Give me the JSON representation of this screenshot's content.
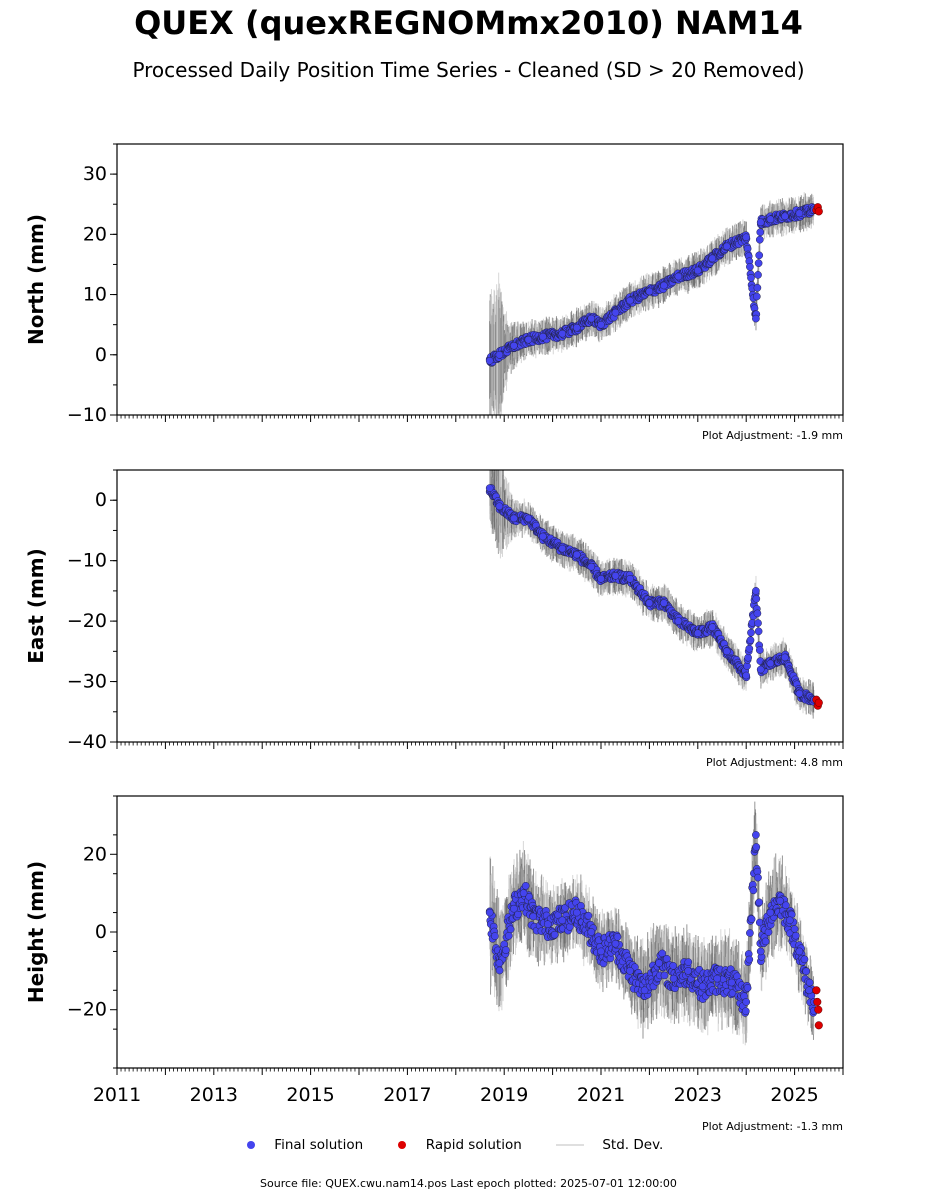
{
  "title": "QUEX (quexREGNOMmx2010) NAM14",
  "subtitle": "Processed Daily Position Time Series - Cleaned (SD > 20 Removed)",
  "colors": {
    "final": "#4444ee",
    "rapid": "#dd0000",
    "stddev": "#9a9a9a"
  },
  "legend": {
    "final": "Final solution",
    "rapid": "Rapid solution",
    "stddev": "Std. Dev."
  },
  "footer": "Source file: QUEX.cwu.nam14.pos  Last epoch plotted: 2025-07-01 12:00:00",
  "chart_data": [
    {
      "type": "scatter",
      "ylabel": "North (mm)",
      "ylim": [
        -10,
        35
      ],
      "yticks": [
        -10,
        0,
        10,
        20,
        30
      ],
      "yticklabels": [
        "−10",
        "0",
        "10",
        "20",
        "30"
      ],
      "xlim": [
        2011,
        2026
      ],
      "adjustment": "Plot Adjustment: -1.9 mm",
      "series": [
        {
          "name": "Final solution",
          "x": [
            2018.7,
            2018.9,
            2019.2,
            2019.5,
            2019.8,
            2020.2,
            2020.5,
            2020.8,
            2021.0,
            2021.3,
            2021.6,
            2022.0,
            2022.3,
            2022.6,
            2023.0,
            2023.3,
            2023.6,
            2024.0,
            2024.2,
            2024.3,
            2024.5,
            2024.8,
            2025.1,
            2025.4
          ],
          "y": [
            -1,
            0,
            1.5,
            2.5,
            3,
            3.5,
            4.5,
            6,
            5,
            7,
            9,
            10.5,
            11.5,
            13,
            14,
            16,
            18,
            19.5,
            6,
            22,
            22.5,
            23,
            23.5,
            24
          ]
        },
        {
          "name": "Rapid solution",
          "x": [
            2025.45,
            2025.48,
            2025.5
          ],
          "y": [
            24,
            24.5,
            23.8
          ]
        }
      ],
      "stddev": {
        "x": [
          2018.7,
          2018.85,
          2019.1,
          2019.5,
          2020.0,
          2020.5,
          2021.0,
          2021.5,
          2022.0,
          2022.5,
          2023.0,
          2023.5,
          2024.0,
          2024.5,
          2025.0,
          2025.4
        ],
        "halfwidth": [
          8,
          10,
          3,
          2,
          2,
          2,
          2,
          2,
          2,
          2,
          2,
          2,
          2,
          2,
          2,
          2
        ]
      }
    },
    {
      "type": "scatter",
      "ylabel": "East (mm)",
      "ylim": [
        -40,
        5
      ],
      "yticks": [
        -40,
        -30,
        -20,
        -10,
        0
      ],
      "yticklabels": [
        "−40",
        "−30",
        "−20",
        "−10",
        "0"
      ],
      "xlim": [
        2011,
        2026
      ],
      "adjustment": "Plot Adjustment: 4.8 mm",
      "series": [
        {
          "name": "Final solution",
          "x": [
            2018.7,
            2018.9,
            2019.2,
            2019.5,
            2019.8,
            2020.2,
            2020.5,
            2020.8,
            2021.0,
            2021.3,
            2021.6,
            2022.0,
            2022.3,
            2022.6,
            2023.0,
            2023.3,
            2023.6,
            2024.0,
            2024.2,
            2024.3,
            2024.5,
            2024.8,
            2025.1,
            2025.4
          ],
          "y": [
            2,
            -1,
            -3,
            -3,
            -6,
            -8,
            -9,
            -11,
            -13,
            -12.5,
            -13,
            -17,
            -17,
            -20,
            -22,
            -21,
            -25,
            -29,
            -15,
            -28,
            -27,
            -26,
            -32,
            -33
          ]
        },
        {
          "name": "Rapid solution",
          "x": [
            2025.45,
            2025.48,
            2025.5
          ],
          "y": [
            -33,
            -34,
            -33.5
          ]
        }
      ],
      "stddev": {
        "x": [
          2018.7,
          2018.9,
          2019.2,
          2019.6,
          2020.0,
          2020.5,
          2021.0,
          2021.5,
          2022.0,
          2022.5,
          2023.0,
          2023.5,
          2024.0,
          2024.5,
          2025.0,
          2025.4
        ],
        "halfwidth": [
          4,
          6,
          2,
          2,
          2,
          2,
          2,
          2,
          2,
          2,
          2,
          2,
          2,
          2,
          2,
          2
        ]
      }
    },
    {
      "type": "scatter",
      "ylabel": "Height (mm)",
      "ylim": [
        -35,
        35
      ],
      "yticks": [
        -20,
        0,
        20
      ],
      "yticklabels": [
        "−20",
        "0",
        "20"
      ],
      "xlim": [
        2011,
        2026
      ],
      "xticks": [
        2011,
        2013,
        2015,
        2017,
        2019,
        2021,
        2023,
        2025
      ],
      "adjustment": "Plot Adjustment: -1.3 mm",
      "series": [
        {
          "name": "Final solution",
          "x": [
            2018.7,
            2018.9,
            2019.2,
            2019.4,
            2019.6,
            2019.9,
            2020.2,
            2020.5,
            2020.8,
            2021.0,
            2021.3,
            2021.6,
            2021.9,
            2022.2,
            2022.5,
            2022.8,
            2023.1,
            2023.4,
            2023.7,
            2024.0,
            2024.2,
            2024.3,
            2024.5,
            2024.7,
            2024.9,
            2025.1,
            2025.3,
            2025.4
          ],
          "y": [
            5,
            -8,
            6,
            10,
            4,
            2,
            3,
            5,
            0,
            -5,
            -3,
            -10,
            -15,
            -8,
            -12,
            -10,
            -14,
            -12,
            -13,
            -18,
            25,
            -5,
            5,
            8,
            3,
            -5,
            -15,
            -18
          ]
        },
        {
          "name": "Rapid solution",
          "x": [
            2025.45,
            2025.47,
            2025.49,
            2025.5
          ],
          "y": [
            -15,
            -18,
            -20,
            -24
          ]
        }
      ],
      "stddev": {
        "x": [
          2018.7,
          2019.0,
          2019.5,
          2020.0,
          2020.5,
          2021.0,
          2021.5,
          2022.0,
          2022.5,
          2023.0,
          2023.5,
          2024.0,
          2024.3,
          2024.6,
          2025.0,
          2025.4
        ],
        "halfwidth": [
          12,
          8,
          8,
          6,
          6,
          6,
          6,
          8,
          8,
          8,
          8,
          8,
          8,
          8,
          6,
          6
        ]
      }
    }
  ]
}
